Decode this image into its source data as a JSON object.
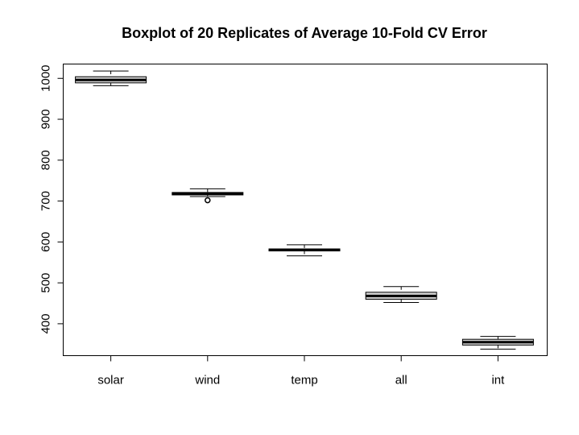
{
  "chart_data": {
    "type": "boxplot",
    "title": "Boxplot of 20 Replicates of Average 10-Fold CV Error",
    "xlabel": "",
    "ylabel": "",
    "ylim": [
      322,
      1035
    ],
    "yticks": [
      400,
      500,
      600,
      700,
      800,
      900,
      1000
    ],
    "ytick_labels": [
      "400",
      "500",
      "600",
      "700",
      "800",
      "900",
      "1000"
    ],
    "grid": false,
    "categories": [
      "solar",
      "wind",
      "temp",
      "all",
      "int"
    ],
    "boxes": [
      {
        "category": "solar",
        "min": 982,
        "q1": 989,
        "median": 996,
        "q3": 1004,
        "max": 1018,
        "outliers": []
      },
      {
        "category": "wind",
        "min": 711,
        "q1": 715,
        "median": 718,
        "q3": 721,
        "max": 730,
        "outliers": [
          702
        ]
      },
      {
        "category": "temp",
        "min": 566,
        "q1": 578,
        "median": 580,
        "q3": 583,
        "max": 593,
        "outliers": []
      },
      {
        "category": "all",
        "min": 452,
        "q1": 460,
        "median": 468,
        "q3": 477,
        "max": 491,
        "outliers": []
      },
      {
        "category": "int",
        "min": 338,
        "q1": 348,
        "median": 355,
        "q3": 362,
        "max": 369,
        "outliers": []
      }
    ]
  }
}
